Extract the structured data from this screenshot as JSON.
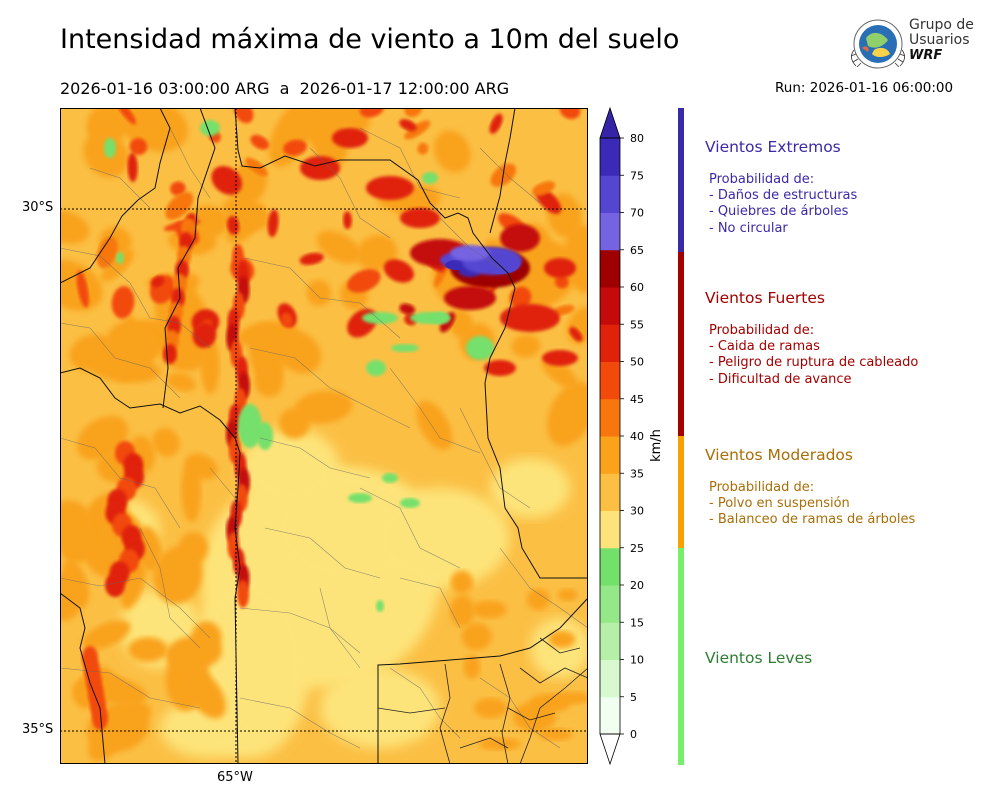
{
  "header": {
    "title": "Intensidad máxima de viento a 10m del suelo",
    "period": "2026-01-16 03:00:00 ARG  a  2026-01-17 12:00:00 ARG",
    "run": "Run: 2026-01-16 06:00:00"
  },
  "logo": {
    "line1": "Grupo de",
    "line2": "Usuarios",
    "line3": "WRF"
  },
  "map": {
    "lat_labels": [
      "30°S",
      "35°S"
    ],
    "lon_labels": [
      "65°W"
    ]
  },
  "colorbar": {
    "unit": "km/h",
    "ticks": [
      "0",
      "5",
      "10",
      "15",
      "20",
      "25",
      "30",
      "35",
      "40",
      "45",
      "50",
      "55",
      "60",
      "65",
      "70",
      "75",
      "80"
    ],
    "levels": [
      {
        "from": 0,
        "to": 5,
        "color": "#f0fff0"
      },
      {
        "from": 5,
        "to": 10,
        "color": "#d8f8d0"
      },
      {
        "from": 10,
        "to": 15,
        "color": "#b6f0a8"
      },
      {
        "from": 15,
        "to": 20,
        "color": "#94e888"
      },
      {
        "from": 20,
        "to": 25,
        "color": "#74e06c"
      },
      {
        "from": 25,
        "to": 30,
        "color": "#fde47a"
      },
      {
        "from": 30,
        "to": 35,
        "color": "#fbbf44"
      },
      {
        "from": 35,
        "to": 40,
        "color": "#f9a21a"
      },
      {
        "from": 40,
        "to": 45,
        "color": "#f7770e"
      },
      {
        "from": 45,
        "to": 50,
        "color": "#f24a0a"
      },
      {
        "from": 50,
        "to": 55,
        "color": "#e0220a"
      },
      {
        "from": 55,
        "to": 60,
        "color": "#c40a0a"
      },
      {
        "from": 60,
        "to": 65,
        "color": "#9e0000"
      },
      {
        "from": 65,
        "to": 70,
        "color": "#7563e2"
      },
      {
        "from": 70,
        "to": 75,
        "color": "#5546d2"
      },
      {
        "from": 75,
        "to": 80,
        "color": "#3b2ab8"
      }
    ],
    "under_color": "#ffffff",
    "over_color": "#3524a8"
  },
  "categories": [
    {
      "title": "Vientos Extremos",
      "color": "#3a2aa8",
      "bar_color": "#3a2aa8",
      "lines": [
        "Probabilidad de:",
        "- Daños de estructuras",
        "- Quiebres de árboles",
        "- No circular"
      ]
    },
    {
      "title": "Vientos Fuertes",
      "color": "#a30000",
      "bar_color": "#a30000",
      "lines": [
        "Probabilidad de:",
        "- Caida de ramas",
        "- Peligro de ruptura de cableado",
        "- Dificultad de avance"
      ]
    },
    {
      "title": "Vientos Moderados",
      "color": "#a86e08",
      "bar_color": "#f7a000",
      "lines": [
        "Probabilidad de:",
        "- Polvo en suspensión",
        "- Balanceo de ramas de árboles"
      ]
    },
    {
      "title": "Vientos Leves",
      "color": "#2e7d32",
      "bar_color": "#76f06c",
      "lines": []
    }
  ]
}
